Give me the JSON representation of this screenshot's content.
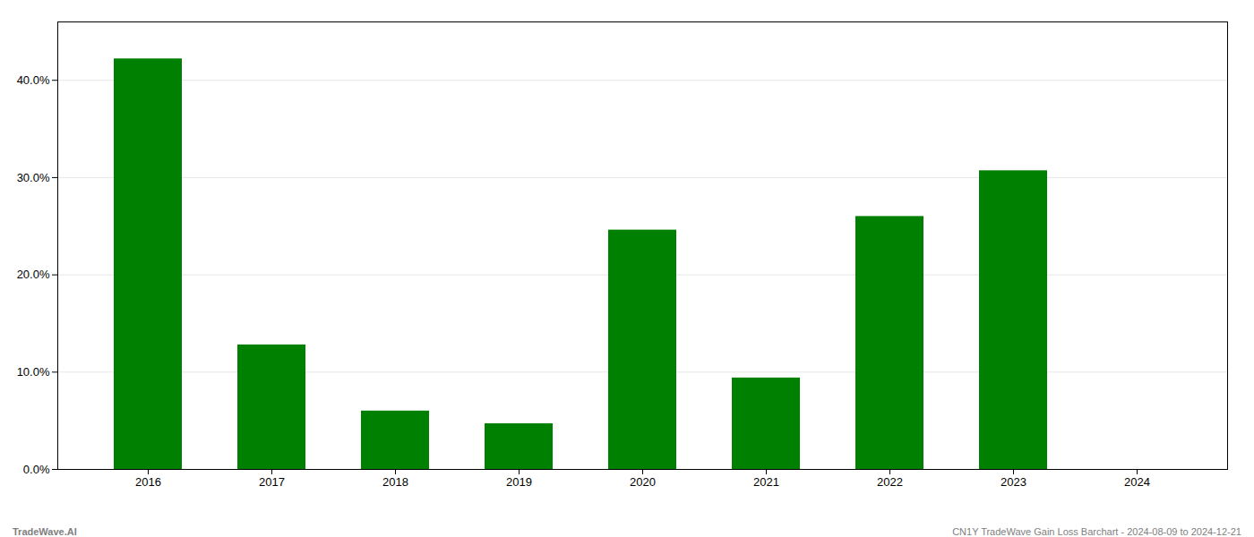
{
  "chart_data": {
    "type": "bar",
    "categories": [
      "2016",
      "2017",
      "2018",
      "2019",
      "2020",
      "2021",
      "2022",
      "2023",
      "2024"
    ],
    "values": [
      0.422,
      0.128,
      0.06,
      0.047,
      0.246,
      0.094,
      0.26,
      0.307,
      0.0
    ],
    "color": "#008000",
    "ylim": [
      0,
      0.46
    ],
    "yticks": [
      {
        "value": 0.0,
        "label": "0.0%"
      },
      {
        "value": 0.1,
        "label": "10.0%"
      },
      {
        "value": 0.2,
        "label": "20.0%"
      },
      {
        "value": 0.3,
        "label": "30.0%"
      },
      {
        "value": 0.4,
        "label": "40.0%"
      }
    ],
    "grid": true,
    "annotations": [
      "TradeWave.AI",
      "CN1Y TradeWave Gain Loss Barchart - 2024-08-09 to 2024-12-21"
    ]
  }
}
